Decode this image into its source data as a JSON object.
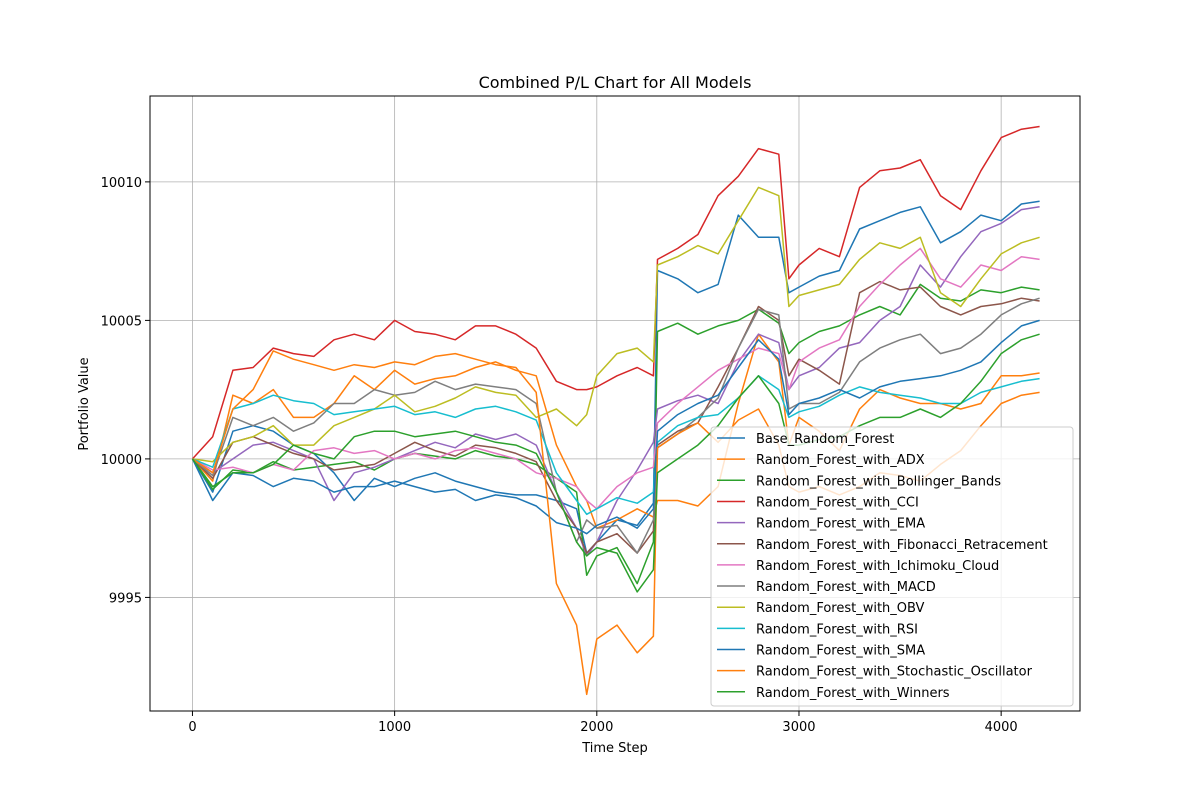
{
  "chart_data": {
    "type": "line",
    "title": "Combined P/L Chart for All Models",
    "xlabel": "Time Step",
    "ylabel": "Portfolio Value",
    "xlim": [
      -210,
      4390
    ],
    "ylim": [
      9990.9,
      10013.1
    ],
    "xticks": [
      0,
      1000,
      2000,
      3000,
      4000
    ],
    "yticks": [
      9995,
      10000,
      10005,
      10010
    ],
    "grid": true,
    "legend_position": "lower-right",
    "x": [
      0,
      100,
      200,
      300,
      400,
      500,
      600,
      700,
      800,
      900,
      1000,
      1100,
      1200,
      1300,
      1400,
      1500,
      1600,
      1700,
      1800,
      1900,
      1950,
      2000,
      2100,
      2200,
      2280,
      2300,
      2400,
      2500,
      2600,
      2700,
      2800,
      2900,
      2950,
      3000,
      3100,
      3200,
      3300,
      3400,
      3500,
      3600,
      3700,
      3800,
      3900,
      4000,
      4100,
      4190
    ],
    "series": [
      {
        "name": "Base_Random_Forest",
        "color": "#1f77b4",
        "values": [
          10000.0,
          9998.8,
          10001.0,
          10001.2,
          10001.0,
          10000.5,
          10000.2,
          9999.5,
          9998.5,
          9999.3,
          9999.0,
          9999.3,
          9999.5,
          9999.2,
          9999.0,
          9998.8,
          9998.7,
          9998.7,
          9998.5,
          9998.2,
          9996.6,
          9997.0,
          9997.8,
          9997.6,
          9998.4,
          10006.8,
          10006.5,
          10006.0,
          10006.3,
          10008.8,
          10008.0,
          10008.0,
          10006.0,
          10006.2,
          10006.6,
          10006.8,
          10008.3,
          10008.6,
          10008.9,
          10009.1,
          10007.8,
          10008.2,
          10008.8,
          10008.6,
          10009.2,
          10009.3
        ]
      },
      {
        "name": "Random_Forest_with_ADX",
        "color": "#ff7f0e",
        "values": [
          10000.0,
          9999.2,
          10002.3,
          10002.0,
          10002.5,
          10001.5,
          10001.5,
          10002.0,
          10003.0,
          10002.5,
          10003.2,
          10002.7,
          10002.9,
          10003.0,
          10003.3,
          10003.5,
          10003.2,
          10003.0,
          10000.5,
          9999.0,
          9998.5,
          9997.5,
          9997.8,
          9998.2,
          9997.9,
          9998.5,
          9998.5,
          9998.3,
          9999.0,
          10002.0,
          10004.5,
          10003.5,
          10000.5,
          10001.5,
          10001.0,
          10000.3,
          10001.8,
          10002.5,
          10002.2,
          10002.0,
          10002.0,
          10001.8,
          10002.0,
          10003.0,
          10003.0,
          10003.1
        ]
      },
      {
        "name": "Random_Forest_with_Bollinger_Bands",
        "color": "#2ca02c",
        "values": [
          10000.0,
          9998.9,
          9999.6,
          9999.5,
          9999.9,
          9999.6,
          9999.7,
          9999.8,
          9999.9,
          9999.6,
          10000.0,
          10000.2,
          10000.1,
          10000.0,
          10000.3,
          10000.1,
          10000.0,
          9999.8,
          9999.3,
          9998.8,
          9995.8,
          9996.5,
          9996.8,
          9995.5,
          9997.0,
          10004.6,
          10004.9,
          10004.5,
          10004.8,
          10005.0,
          10005.4,
          10004.9,
          10003.8,
          10004.2,
          10004.6,
          10004.8,
          10005.2,
          10005.5,
          10005.2,
          10006.3,
          10005.8,
          10005.7,
          10006.1,
          10006.0,
          10006.2,
          10006.1
        ]
      },
      {
        "name": "Random_Forest_with_CCI",
        "color": "#d62728",
        "values": [
          10000.0,
          10000.8,
          10003.2,
          10003.3,
          10004.0,
          10003.8,
          10003.7,
          10004.3,
          10004.5,
          10004.3,
          10005.0,
          10004.6,
          10004.5,
          10004.3,
          10004.8,
          10004.8,
          10004.5,
          10004.0,
          10002.8,
          10002.5,
          10002.5,
          10002.6,
          10003.0,
          10003.3,
          10003.0,
          10007.2,
          10007.6,
          10008.1,
          10009.5,
          10010.2,
          10011.2,
          10011.0,
          10006.5,
          10007.0,
          10007.6,
          10007.3,
          10009.8,
          10010.4,
          10010.5,
          10010.8,
          10009.5,
          10009.0,
          10010.4,
          10011.6,
          10011.9,
          10012.0
        ]
      },
      {
        "name": "Random_Forest_with_EMA",
        "color": "#9467bd",
        "values": [
          10000.0,
          9999.5,
          10000.0,
          10000.5,
          10000.6,
          10000.3,
          10000.0,
          9998.5,
          9999.5,
          9999.7,
          10000.0,
          10000.3,
          10000.6,
          10000.4,
          10000.9,
          10000.7,
          10000.9,
          10000.5,
          9998.8,
          9997.5,
          9996.5,
          9997.0,
          9998.5,
          9999.6,
          10000.6,
          10001.8,
          10002.1,
          10002.3,
          10002.0,
          10003.5,
          10004.5,
          10004.2,
          10002.5,
          10003.0,
          10003.3,
          10004.0,
          10004.2,
          10005.0,
          10005.5,
          10007.0,
          10006.2,
          10007.3,
          10008.2,
          10008.5,
          10009.0,
          10009.1
        ]
      },
      {
        "name": "Random_Forest_with_Fibonacci_Retracement",
        "color": "#8c564b",
        "values": [
          10000.0,
          9999.3,
          10000.6,
          10000.8,
          10000.5,
          10000.2,
          10000.0,
          9999.6,
          9999.7,
          9999.8,
          10000.2,
          10000.6,
          10000.3,
          10000.1,
          10000.5,
          10000.4,
          10000.2,
          9999.9,
          9998.5,
          9997.5,
          9996.6,
          9997.0,
          9997.3,
          9996.6,
          9997.4,
          10000.5,
          10001.0,
          10001.3,
          10002.6,
          10004.0,
          10005.5,
          10005.0,
          10003.0,
          10003.6,
          10003.2,
          10002.7,
          10006.0,
          10006.4,
          10006.1,
          10006.2,
          10005.5,
          10005.2,
          10005.5,
          10005.6,
          10005.8,
          10005.7
        ]
      },
      {
        "name": "Random_Forest_with_Ichimoku_Cloud",
        "color": "#e377c2",
        "values": [
          10000.0,
          9999.6,
          9999.7,
          9999.5,
          9999.8,
          9999.6,
          10000.3,
          10000.4,
          10000.2,
          10000.3,
          10000.0,
          10000.2,
          10000.0,
          10000.3,
          10000.4,
          10000.2,
          10000.0,
          9999.5,
          9999.3,
          9999.0,
          9998.5,
          9998.2,
          9999.0,
          9999.5,
          9999.7,
          10001.3,
          10002.0,
          10002.6,
          10003.2,
          10003.6,
          10004.0,
          10003.8,
          10002.5,
          10003.5,
          10004.0,
          10004.3,
          10005.5,
          10006.3,
          10007.0,
          10007.6,
          10006.5,
          10006.2,
          10007.0,
          10006.8,
          10007.3,
          10007.2
        ]
      },
      {
        "name": "Random_Forest_with_MACD",
        "color": "#7f7f7f",
        "values": [
          10000.0,
          9999.4,
          10001.5,
          10001.2,
          10001.5,
          10001.0,
          10001.3,
          10002.0,
          10002.0,
          10002.5,
          10002.3,
          10002.4,
          10002.8,
          10002.5,
          10002.7,
          10002.6,
          10002.5,
          10002.0,
          9998.8,
          9997.0,
          9997.8,
          9997.5,
          9997.6,
          9996.6,
          9997.8,
          10000.4,
          10000.9,
          10001.5,
          10002.2,
          10004.0,
          10005.4,
          10005.2,
          10001.8,
          10002.0,
          10002.0,
          10002.4,
          10003.5,
          10004.0,
          10004.3,
          10004.5,
          10003.8,
          10004.0,
          10004.5,
          10005.2,
          10005.6,
          10005.8
        ]
      },
      {
        "name": "Random_Forest_with_OBV",
        "color": "#bcbd22",
        "values": [
          10000.0,
          9999.9,
          10000.6,
          10000.8,
          10001.2,
          10000.5,
          10000.5,
          10001.2,
          10001.5,
          10001.8,
          10002.3,
          10001.7,
          10001.9,
          10002.2,
          10002.6,
          10002.4,
          10002.3,
          10001.5,
          10001.8,
          10001.2,
          10001.6,
          10003.0,
          10003.8,
          10004.0,
          10003.5,
          10007.0,
          10007.3,
          10007.7,
          10007.4,
          10008.6,
          10009.8,
          10009.5,
          10005.5,
          10005.9,
          10006.1,
          10006.3,
          10007.2,
          10007.8,
          10007.6,
          10008.0,
          10006.0,
          10005.5,
          10006.5,
          10007.4,
          10007.8,
          10008.0
        ]
      },
      {
        "name": "Random_Forest_with_RSI",
        "color": "#17becf",
        "values": [
          10000.0,
          9999.7,
          10001.8,
          10002.0,
          10002.3,
          10002.1,
          10002.0,
          10001.6,
          10001.7,
          10001.8,
          10001.9,
          10001.6,
          10001.7,
          10001.5,
          10001.8,
          10001.9,
          10001.7,
          10001.4,
          9999.5,
          9998.5,
          9998.0,
          9998.2,
          9998.6,
          9998.4,
          9998.8,
          10000.6,
          10001.2,
          10001.5,
          10001.6,
          10002.2,
          10003.0,
          10002.5,
          10001.5,
          10001.7,
          10001.9,
          10002.3,
          10002.6,
          10002.4,
          10002.3,
          10002.2,
          10002.0,
          10002.0,
          10002.4,
          10002.6,
          10002.8,
          10002.9
        ]
      },
      {
        "name": "Random_Forest_with_SMA",
        "color": "#1f77b4",
        "values": [
          10000.0,
          9998.5,
          9999.5,
          9999.4,
          9999.0,
          9999.3,
          9999.2,
          9998.8,
          9999.0,
          9999.0,
          9999.2,
          9999.0,
          9998.8,
          9998.9,
          9998.5,
          9998.7,
          9998.6,
          9998.3,
          9997.7,
          9997.5,
          9997.3,
          9997.6,
          9997.9,
          9997.5,
          9998.2,
          10001.0,
          10001.6,
          10002.0,
          10002.3,
          10003.3,
          10004.3,
          10003.6,
          10001.6,
          10002.0,
          10002.2,
          10002.5,
          10002.2,
          10002.6,
          10002.8,
          10002.9,
          10003.0,
          10003.2,
          10003.5,
          10004.2,
          10004.8,
          10005.0
        ]
      },
      {
        "name": "Random_Forest_with_Stochastic_Oscillator",
        "color": "#ff7f0e",
        "values": [
          10000.0,
          9999.5,
          10001.8,
          10002.5,
          10003.9,
          10003.6,
          10003.4,
          10003.2,
          10003.4,
          10003.3,
          10003.5,
          10003.4,
          10003.7,
          10003.8,
          10003.6,
          10003.4,
          10003.3,
          10002.4,
          9995.5,
          9994.0,
          9991.5,
          9993.5,
          9994.0,
          9993.0,
          9993.6,
          10000.4,
          10000.9,
          10001.3,
          10000.6,
          10001.4,
          10001.8,
          10000.5,
          9999.0,
          9998.8,
          9999.0,
          9998.7,
          9999.0,
          9999.5,
          9999.4,
          9999.2,
          9999.8,
          10000.3,
          10001.2,
          10002.0,
          10002.3,
          10002.4
        ]
      },
      {
        "name": "Random_Forest_with_Winners",
        "color": "#2ca02c",
        "values": [
          10000.0,
          9999.0,
          9999.5,
          9999.5,
          9999.8,
          10000.5,
          10000.2,
          10000.0,
          10000.8,
          10001.0,
          10001.0,
          10000.8,
          10000.9,
          10001.0,
          10000.8,
          10000.6,
          10000.5,
          10000.2,
          9998.8,
          9997.0,
          9996.5,
          9996.8,
          9996.6,
          9995.2,
          9996.0,
          9999.5,
          10000.0,
          10000.5,
          10001.2,
          10002.2,
          10003.0,
          10002.0,
          10000.5,
          10000.5,
          10000.7,
          10000.8,
          10001.2,
          10001.5,
          10001.5,
          10001.8,
          10001.5,
          10002.0,
          10002.8,
          10003.8,
          10004.3,
          10004.5
        ]
      }
    ]
  }
}
